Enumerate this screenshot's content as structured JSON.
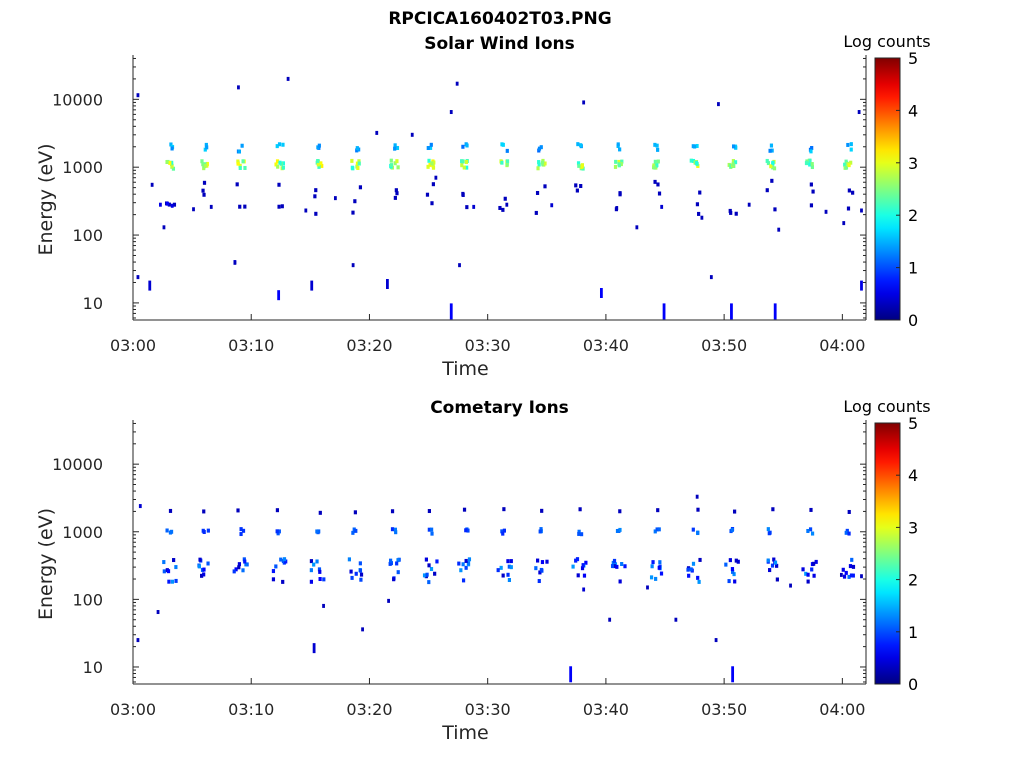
{
  "figure_title": "RPCICA160402T03.PNG",
  "colorbar": {
    "title": "Log counts",
    "ticks": [
      "0",
      "1",
      "2",
      "3",
      "4",
      "5"
    ],
    "range": [
      0,
      5
    ],
    "colormap": "jet"
  },
  "chart_data": [
    {
      "type": "heatmap",
      "title": "Solar Wind Ions",
      "xlabel": "Time",
      "ylabel": "Energy (eV)",
      "x_ticks": [
        "03:00",
        "03:10",
        "03:20",
        "03:30",
        "03:40",
        "03:50",
        "04:00"
      ],
      "y_ticks": [
        "10",
        "100",
        "1000",
        "10000"
      ],
      "y_scale": "log",
      "ylim": [
        5.6,
        45000
      ],
      "xlim_minutes": [
        0,
        62
      ],
      "scan_times_min": [
        3,
        6,
        9,
        12.3,
        15.5,
        18.7,
        22,
        25,
        28,
        31.3,
        34.4,
        37.6,
        41,
        44.2,
        47.4,
        50.6,
        53.8,
        57.1,
        60.4
      ],
      "bright_band_eV": [
        950,
        1250
      ],
      "bright_band_log_counts": 2.8,
      "secondary_band_eV": [
        1700,
        2200
      ],
      "secondary_band_log_counts": 1.6,
      "scatter_points": [
        {
          "t": 0.3,
          "e": 11500,
          "c": 0.3
        },
        {
          "t": 1.5,
          "e": 550,
          "c": 0.3
        },
        {
          "t": 2.2,
          "e": 280,
          "c": 0.5
        },
        {
          "t": 2.8,
          "e": 290,
          "c": 0.6
        },
        {
          "t": 3.2,
          "e": 270,
          "c": 0.5
        },
        {
          "t": 2.5,
          "e": 130,
          "c": 0.3
        },
        {
          "t": 5,
          "e": 240,
          "c": 0.3
        },
        {
          "t": 6.5,
          "e": 260,
          "c": 0.3
        },
        {
          "t": 8.5,
          "e": 40,
          "c": 0.4
        },
        {
          "t": 8.8,
          "e": 15000,
          "c": 0.3
        },
        {
          "t": 13,
          "e": 20000,
          "c": 0.3
        },
        {
          "t": 14.5,
          "e": 230,
          "c": 0.3
        },
        {
          "t": 17,
          "e": 350,
          "c": 0.3
        },
        {
          "t": 20.5,
          "e": 3200,
          "c": 0.3
        },
        {
          "t": 23.5,
          "e": 3000,
          "c": 0.3
        },
        {
          "t": 25.5,
          "e": 700,
          "c": 0.3
        },
        {
          "t": 26.8,
          "e": 6500,
          "c": 0.3
        },
        {
          "t": 27.3,
          "e": 17000,
          "c": 0.3
        },
        {
          "t": 28.7,
          "e": 260,
          "c": 0.4
        },
        {
          "t": 31.5,
          "e": 280,
          "c": 0.3
        },
        {
          "t": 35.3,
          "e": 275,
          "c": 0.4
        },
        {
          "t": 38,
          "e": 9000,
          "c": 0.3
        },
        {
          "t": 40.8,
          "e": 250,
          "c": 0.3
        },
        {
          "t": 42.5,
          "e": 130,
          "c": 0.3
        },
        {
          "t": 44.6,
          "e": 260,
          "c": 0.4
        },
        {
          "t": 48,
          "e": 180,
          "c": 0.3
        },
        {
          "t": 49.4,
          "e": 8500,
          "c": 0.3
        },
        {
          "t": 52,
          "e": 280,
          "c": 0.3
        },
        {
          "t": 54.5,
          "e": 120,
          "c": 0.3
        },
        {
          "t": 58.5,
          "e": 220,
          "c": 0.3
        },
        {
          "t": 60,
          "e": 150,
          "c": 0.3
        },
        {
          "t": 61.3,
          "e": 6500,
          "c": 0.3
        },
        {
          "t": 61.5,
          "e": 230,
          "c": 0.3
        },
        {
          "t": 12.2,
          "e": 13,
          "c": 0.6
        },
        {
          "t": 15,
          "e": 18,
          "c": 0.4
        },
        {
          "t": 21.4,
          "e": 19,
          "c": 0.4
        },
        {
          "t": 26.8,
          "e": 7.5,
          "c": 0.6
        },
        {
          "t": 39.5,
          "e": 14,
          "c": 0.6
        },
        {
          "t": 44.8,
          "e": 7.5,
          "c": 0.6
        },
        {
          "t": 50.5,
          "e": 7.5,
          "c": 0.6
        },
        {
          "t": 54.2,
          "e": 7.5,
          "c": 0.6
        },
        {
          "t": 61.5,
          "e": 18,
          "c": 0.5
        },
        {
          "t": 1.3,
          "e": 18,
          "c": 0.4
        },
        {
          "t": 0.3,
          "e": 24,
          "c": 0.3
        },
        {
          "t": 8.5,
          "e": 39,
          "c": 0.3
        },
        {
          "t": 18.5,
          "e": 36,
          "c": 0.3
        },
        {
          "t": 27.5,
          "e": 36,
          "c": 0.3
        },
        {
          "t": 48.8,
          "e": 24,
          "c": 0.3
        }
      ]
    },
    {
      "type": "heatmap",
      "title": "Cometary Ions",
      "xlabel": "Time",
      "ylabel": "Energy (eV)",
      "x_ticks": [
        "03:00",
        "03:10",
        "03:20",
        "03:30",
        "03:40",
        "03:50",
        "04:00"
      ],
      "y_ticks": [
        "10",
        "100",
        "1000",
        "10000"
      ],
      "y_scale": "log",
      "ylim": [
        5.6,
        45000
      ],
      "xlim_minutes": [
        0,
        62
      ],
      "scan_times_min": [
        3,
        6,
        9,
        12.3,
        15.5,
        18.7,
        22,
        25,
        28,
        31.3,
        34.4,
        37.6,
        41,
        44.2,
        47.4,
        50.6,
        53.8,
        57.1,
        60.4
      ],
      "band_eV": [
        920,
        1100
      ],
      "band_log_counts": 1.1,
      "low_band_eV": [
        180,
        400
      ],
      "low_band_log_counts": 1.2,
      "scatter_points": [
        {
          "t": 0.5,
          "e": 2400,
          "c": 0.4
        },
        {
          "t": 0.3,
          "e": 25,
          "c": 0.3
        },
        {
          "t": 2,
          "e": 65,
          "c": 0.3
        },
        {
          "t": 15.2,
          "e": 19,
          "c": 0.4
        },
        {
          "t": 19.3,
          "e": 36,
          "c": 0.3
        },
        {
          "t": 21.5,
          "e": 95,
          "c": 0.3
        },
        {
          "t": 36.9,
          "e": 7.8,
          "c": 0.6
        },
        {
          "t": 40.2,
          "e": 50,
          "c": 0.3
        },
        {
          "t": 45.8,
          "e": 50,
          "c": 0.3
        },
        {
          "t": 49.2,
          "e": 25,
          "c": 0.3
        },
        {
          "t": 50.6,
          "e": 7.8,
          "c": 0.6
        },
        {
          "t": 47.6,
          "e": 3300,
          "c": 0.3
        },
        {
          "t": 16,
          "e": 80,
          "c": 0.3
        },
        {
          "t": 38,
          "e": 140,
          "c": 0.4
        },
        {
          "t": 43.4,
          "e": 150,
          "c": 0.3
        },
        {
          "t": 55.5,
          "e": 160,
          "c": 0.3
        },
        {
          "t": 59.8,
          "e": 230,
          "c": 0.3
        },
        {
          "t": 61.5,
          "e": 220,
          "c": 0.3
        }
      ]
    }
  ]
}
